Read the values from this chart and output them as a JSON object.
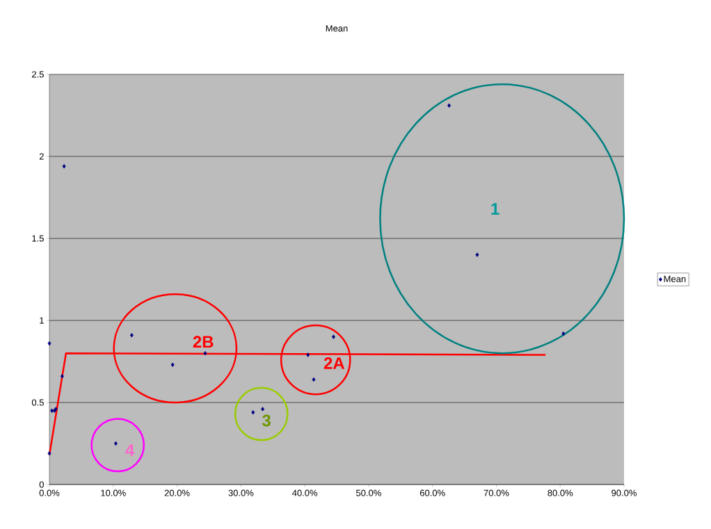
{
  "chart_data": {
    "type": "scatter",
    "title": "Mean",
    "series": [
      {
        "name": "Mean",
        "marker": "diamond",
        "color": "#000080",
        "x": [
          0.0,
          0.0,
          0.4,
          0.8,
          1.0,
          2.0,
          2.3,
          10.4,
          12.9,
          19.3,
          24.4,
          31.9,
          33.4,
          40.5,
          41.4,
          44.5,
          62.6,
          67.0,
          80.5
        ],
        "values": [
          0.86,
          0.19,
          0.45,
          0.45,
          0.46,
          0.66,
          1.94,
          0.25,
          0.91,
          0.73,
          0.8,
          0.44,
          0.46,
          0.79,
          0.64,
          0.9,
          2.31,
          1.4,
          0.92
        ]
      },
      {
        "type": "line",
        "marker": "none",
        "color": "#ff0000",
        "x": [
          0.0,
          2.6,
          77.7
        ],
        "values": [
          0.18,
          0.8,
          0.79
        ]
      }
    ],
    "xlim": [
      0,
      90
    ],
    "xticks": [
      {
        "value": 0,
        "label": "0.0%"
      },
      {
        "value": 10,
        "label": "10.0%"
      },
      {
        "value": 20,
        "label": "20.0%"
      },
      {
        "value": 30,
        "label": "30.0%"
      },
      {
        "value": 40,
        "label": "40.0%"
      },
      {
        "value": 50,
        "label": "50.0%"
      },
      {
        "value": 60,
        "label": "60.0%"
      },
      {
        "value": 70,
        "label": "70.0%"
      },
      {
        "value": 80,
        "label": "80.0%"
      },
      {
        "value": 90,
        "label": "90.0%"
      }
    ],
    "ylim": [
      0,
      2.5
    ],
    "yticks": [
      0,
      0.5,
      1,
      1.5,
      2,
      2.5
    ],
    "grid": "y",
    "legend": "right",
    "annotations": [
      "1",
      "2B",
      "2A",
      "3",
      "4"
    ]
  }
}
